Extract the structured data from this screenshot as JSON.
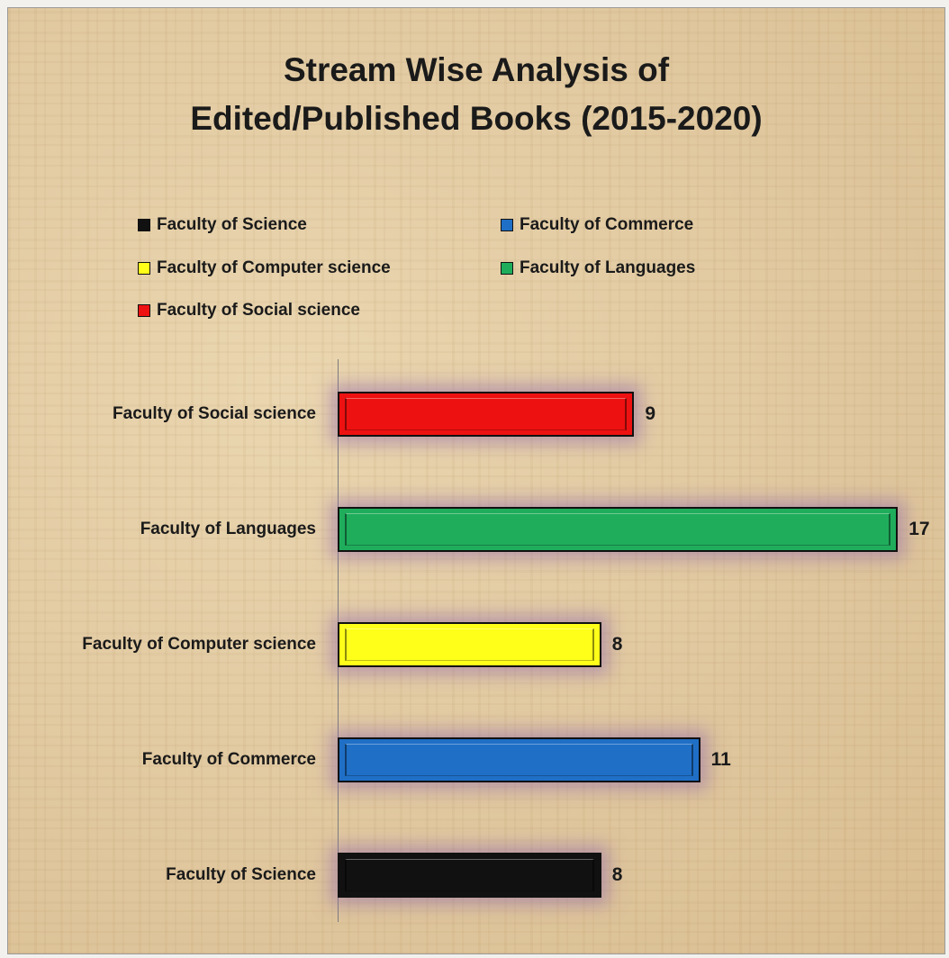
{
  "chart_data": {
    "type": "bar",
    "orientation": "horizontal",
    "title_line1": "Stream Wise Analysis of",
    "title_line2": "Edited/Published Books (2015-2020)",
    "categories": [
      "Faculty of Science",
      "Faculty of Commerce",
      "Faculty of Computer science",
      "Faculty of Languages",
      "Faculty of Social science"
    ],
    "values": [
      8,
      11,
      8,
      17,
      9
    ],
    "colors": [
      "#111111",
      "#1f6fc6",
      "#ffff1a",
      "#1fad5c",
      "#ee1111"
    ],
    "xlim": [
      0,
      17
    ],
    "grid": false,
    "legend_position": "top",
    "legend": [
      {
        "label": "Faculty of Science",
        "color": "#111111"
      },
      {
        "label": "Faculty of Commerce",
        "color": "#1f6fc6"
      },
      {
        "label": "Faculty of Computer science",
        "color": "#ffff1a"
      },
      {
        "label": "Faculty of Languages",
        "color": "#1fad5c"
      },
      {
        "label": "Faculty of Social science",
        "color": "#ee1111"
      }
    ]
  }
}
